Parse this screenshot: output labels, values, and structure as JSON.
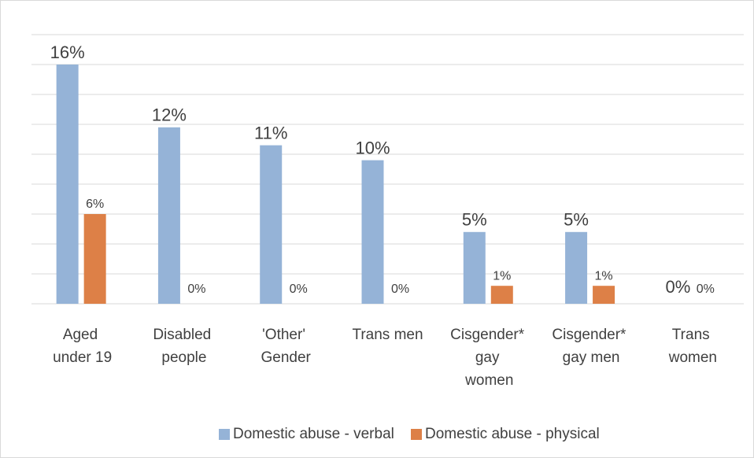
{
  "chart_data": {
    "type": "bar",
    "categories": [
      "Aged under 19",
      "Disabled people",
      "'Other' Gender",
      "Trans men",
      "Cisgender* gay women",
      "Cisgender* gay men",
      "Trans women"
    ],
    "series": [
      {
        "name": "Domestic abuse - verbal",
        "color": "#95b3d7",
        "values": [
          16,
          11.8,
          10.6,
          9.6,
          4.8,
          4.8,
          0
        ],
        "value_labels": [
          "16%",
          "12%",
          "11%",
          "10%",
          "5%",
          "5%",
          "0%"
        ]
      },
      {
        "name": "Domestic abuse - physical",
        "color": "#dd8047",
        "values": [
          6,
          0,
          0,
          0,
          1.2,
          1.2,
          0
        ],
        "value_labels": [
          "6%",
          "0%",
          "0%",
          "0%",
          "1%",
          "1%",
          "0%"
        ]
      }
    ],
    "ylim": [
      0,
      18
    ],
    "yticks": [
      0,
      2,
      4,
      6,
      8,
      10,
      12,
      14,
      16,
      18
    ],
    "grid": true,
    "legend": "bottom"
  }
}
